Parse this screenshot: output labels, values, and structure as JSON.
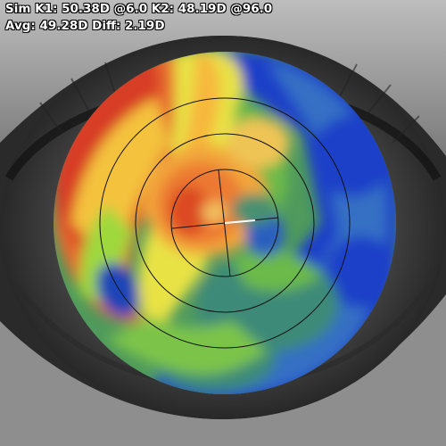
{
  "readout": {
    "line1": "Sim K1: 50.38D @6.0 K2: 48.19D @96.0",
    "line2": "Avg: 49.28D Diff: 2.19D"
  },
  "map": {
    "sim_k1_power": "50.38D",
    "sim_k1_axis": "6.0",
    "sim_k2_power": "48.19D",
    "sim_k2_axis": "96.0",
    "avg_power": "49.28D",
    "diff": "2.19D",
    "color_scale": [
      "#0a23c8",
      "#2a64be",
      "#3a78b4",
      "#4e9a5a",
      "#66b446",
      "#a0dc3c",
      "#e8e646",
      "#f6bc3c",
      "#ec7a30",
      "#dc4624",
      "#c81e1e"
    ]
  }
}
